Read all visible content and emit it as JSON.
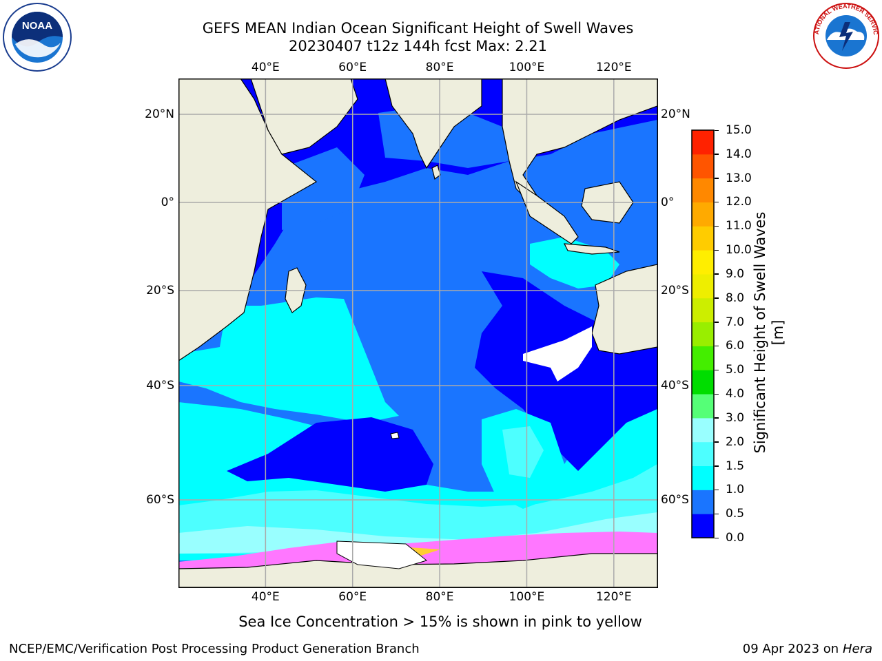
{
  "header": {
    "title_line1": "GEFS MEAN Indian Ocean Significant Height of Swell Waves",
    "title_line2": "20230407 t12z 144h fcst   Max: 2.21"
  },
  "map": {
    "lon_ticks": [
      {
        "value": 40,
        "label": "40°E"
      },
      {
        "value": 60,
        "label": "60°E"
      },
      {
        "value": 80,
        "label": "80°E"
      },
      {
        "value": 100,
        "label": "100°E"
      },
      {
        "value": 120,
        "label": "120°E"
      }
    ],
    "lat_ticks": [
      {
        "value": 20,
        "label": "20°N"
      },
      {
        "value": 0,
        "label": "0°"
      },
      {
        "value": -20,
        "label": "20°S"
      },
      {
        "value": -40,
        "label": "40°S"
      },
      {
        "value": -60,
        "label": "60°S"
      }
    ],
    "colors": {
      "land": "#eeeedd",
      "coast": "#000000",
      "grid": "#aaaaaa",
      "wave_0_0_5": "#0000ff",
      "wave_0_5_1_0": "#1a75ff",
      "wave_1_0_1_5": "#00ffff",
      "wave_1_5_2_0": "#4dffff",
      "wave_2_0_3_0": "#99ffff",
      "sea_ice_low": "#ff77ff",
      "sea_ice_high": "#ffcc33"
    },
    "note": "Sea Ice Concentration > 15% is shown in pink to yellow"
  },
  "colorbar": {
    "label": "Significant Height of Swell Waves [m]",
    "levels": [
      "0.0",
      "0.5",
      "1.0",
      "1.5",
      "2.0",
      "3.0",
      "4.0",
      "5.0",
      "6.0",
      "7.0",
      "8.0",
      "9.0",
      "10.0",
      "11.0",
      "12.0",
      "13.0",
      "14.0",
      "15.0"
    ],
    "colors": [
      "#0000ff",
      "#1a75ff",
      "#00ffff",
      "#4dffff",
      "#99ffff",
      "#55ff77",
      "#00dd00",
      "#44ee00",
      "#99ee00",
      "#ccee00",
      "#eeee00",
      "#ffee00",
      "#ffcc00",
      "#ffaa00",
      "#ff8800",
      "#ff5500",
      "#ff2200"
    ]
  },
  "logos": {
    "noaa_text": "NOAA",
    "nws_text": "NATIONAL WEATHER SERVICE"
  },
  "footer": {
    "left": "NCEP/EMC/Verification Post Processing Product Generation Branch",
    "right_prefix": "09 Apr 2023 on ",
    "right_machine": "Hera"
  }
}
